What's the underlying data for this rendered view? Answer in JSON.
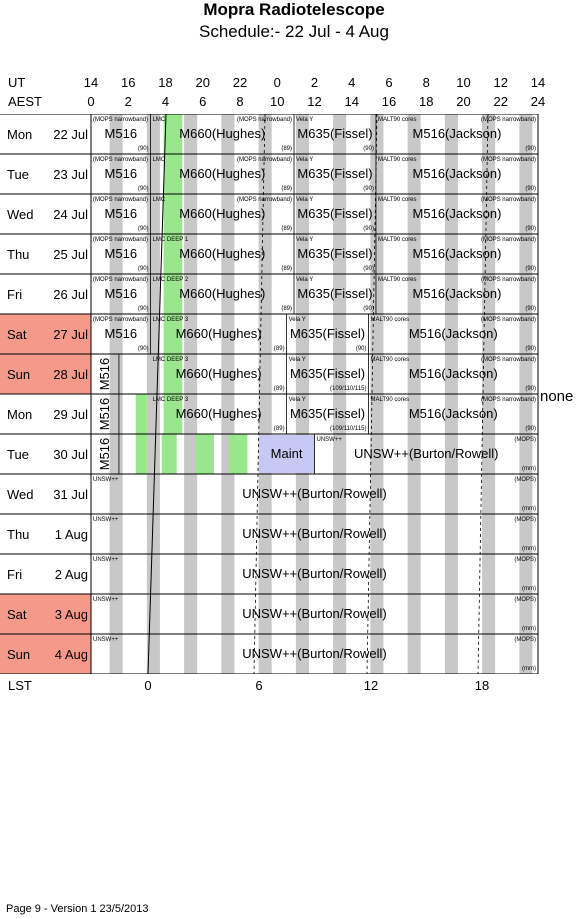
{
  "title": "Mopra Radiotelescope",
  "subtitle": "Schedule:- 22 Jul - 4  Aug",
  "ut_label": "UT",
  "aest_label": "AEST",
  "lst_label": "LST",
  "ut_ticks": [
    "14",
    "16",
    "18",
    "20",
    "22",
    "0",
    "2",
    "4",
    "6",
    "8",
    "10",
    "12",
    "14"
  ],
  "aest_ticks": [
    "0",
    "2",
    "4",
    "6",
    "8",
    "10",
    "12",
    "14",
    "16",
    "18",
    "20",
    "22",
    "24"
  ],
  "lst_ticks": [
    "0",
    "6",
    "12",
    "18"
  ],
  "side_note": "none",
  "footer": "Page 9 - Version 1  23/5/2013",
  "colors": {
    "weekend": "#f59a8a",
    "green": "#99e68c",
    "maint": "#c8c8f5",
    "stripe": "#c8c8c8"
  },
  "days": [
    {
      "day": "Mon",
      "date": "22 Jul",
      "weekend": false
    },
    {
      "day": "Tue",
      "date": "23 Jul",
      "weekend": false
    },
    {
      "day": "Wed",
      "date": "24 Jul",
      "weekend": false
    },
    {
      "day": "Thu",
      "date": "25 Jul",
      "weekend": false
    },
    {
      "day": "Fri",
      "date": "26 Jul",
      "weekend": false
    },
    {
      "day": "Sat",
      "date": "27 Jul",
      "weekend": true
    },
    {
      "day": "Sun",
      "date": "28 Jul",
      "weekend": true
    },
    {
      "day": "Mon",
      "date": "29 Jul",
      "weekend": false
    },
    {
      "day": "Tue",
      "date": "30 Jul",
      "weekend": false
    },
    {
      "day": "Wed",
      "date": "31 Jul",
      "weekend": false
    },
    {
      "day": "Thu",
      "date": "1  Aug",
      "weekend": false
    },
    {
      "day": "Fri",
      "date": "2  Aug",
      "weekend": false
    },
    {
      "day": "Sat",
      "date": "3  Aug",
      "weekend": true
    },
    {
      "day": "Sun",
      "date": "4  Aug",
      "weekend": true
    }
  ],
  "blocks": [
    [
      {
        "main": "M516",
        "top": "(MOPS narrowband)",
        "bottom": "(90)",
        "start": 14,
        "end": 17.2
      },
      {
        "main": "M660(Hughes)",
        "top": "LMC",
        "top2": "(MOPS narrowband)",
        "bottom": "(89)",
        "start": 17.2,
        "end": 24.9
      },
      {
        "main": "M635(Fissel)",
        "top": "Vela Y",
        "bottom": "(90)",
        "start": 24.9,
        "end": 29.3
      },
      {
        "main": "M516(Jackson)",
        "top": "MALT90 cores",
        "top2": "(MOPS narrowband)",
        "bottom": "(90)",
        "start": 29.3,
        "end": 38
      }
    ],
    [
      {
        "main": "M516",
        "top": "(MOPS narrowband)",
        "bottom": "(90)",
        "start": 14,
        "end": 17.2
      },
      {
        "main": "M660(Hughes)",
        "top": "LMC",
        "top2": "(MOPS narrowband)",
        "bottom": "(89)",
        "start": 17.2,
        "end": 24.9
      },
      {
        "main": "M635(Fissel)",
        "top": "Vela Y",
        "bottom": "(90)",
        "start": 24.9,
        "end": 29.3
      },
      {
        "main": "M516(Jackson)",
        "top": "MALT90 cores",
        "top2": "(MOPS narrowband)",
        "bottom": "(90)",
        "start": 29.3,
        "end": 38
      }
    ],
    [
      {
        "main": "M516",
        "top": "(MOPS narrowband)",
        "bottom": "(90)",
        "start": 14,
        "end": 17.2
      },
      {
        "main": "M660(Hughes)",
        "top": "LMC",
        "top2": "(MOPS narrowband)",
        "bottom": "(89)",
        "start": 17.2,
        "end": 24.9
      },
      {
        "main": "M635(Fissel)",
        "top": "Vela Y",
        "bottom": "(90)",
        "start": 24.9,
        "end": 29.3
      },
      {
        "main": "M516(Jackson)",
        "top": "MALT90 cores",
        "top2": "(MOPS narrowband)",
        "bottom": "(90)",
        "start": 29.3,
        "end": 38
      }
    ],
    [
      {
        "main": "M516",
        "top": "(MOPS narrowband)",
        "bottom": "(90)",
        "start": 14,
        "end": 17.2
      },
      {
        "main": "M660(Hughes)",
        "top": "LMC DEEP 1",
        "bottom": "(89)",
        "start": 17.2,
        "end": 24.9
      },
      {
        "main": "M635(Fissel)",
        "top": "Vela Y",
        "bottom": "(90)",
        "start": 24.9,
        "end": 29.3
      },
      {
        "main": "M516(Jackson)",
        "top": "MALT90 cores",
        "top2": "(MOPS narrowband)",
        "bottom": "(90)",
        "start": 29.3,
        "end": 38
      }
    ],
    [
      {
        "main": "M516",
        "top": "(MOPS narrowband)",
        "bottom": "(90)",
        "start": 14,
        "end": 17.2
      },
      {
        "main": "M660(Hughes)",
        "top": "LMC DEEP 2",
        "bottom": "(89)",
        "start": 17.2,
        "end": 24.9
      },
      {
        "main": "M635(Fissel)",
        "top": "Vela Y",
        "bottom": "(90)",
        "start": 24.9,
        "end": 29.3
      },
      {
        "main": "M516(Jackson)",
        "top": "MALT90 cores",
        "top2": "(MOPS narrowband)",
        "bottom": "(90)",
        "start": 29.3,
        "end": 38
      }
    ],
    [
      {
        "main": "M516",
        "top": "(MOPS narrowband)",
        "bottom": "(90)",
        "start": 14,
        "end": 17.2
      },
      {
        "main": "M660(Hughes)",
        "top": "LMC DEEP 3",
        "bottom": "(89)",
        "start": 17.2,
        "end": 24.5
      },
      {
        "main": "M635(Fissel)",
        "top": "Vela Y",
        "bottom": "(90)",
        "start": 24.5,
        "end": 28.9
      },
      {
        "main": "M516(Jackson)",
        "top": "MALT90 cores",
        "top2": "(MOPS narrowband)",
        "bottom": "(90)",
        "start": 28.9,
        "end": 38
      }
    ],
    [
      {
        "main": "M516",
        "vertical": true,
        "start": 14,
        "end": 15.5
      },
      {
        "main": "M660(Hughes)",
        "top": "LMC DEEP 3",
        "bottom": "(89)",
        "start": 17.2,
        "end": 24.5
      },
      {
        "main": "M635(Fissel)",
        "top": "Vela Y",
        "bottom": "(109/110/115)",
        "start": 24.5,
        "end": 28.9
      },
      {
        "main": "M516(Jackson)",
        "top": "MALT90 cores",
        "top2": "(MOPS narrowband)",
        "bottom": "(90)",
        "start": 28.9,
        "end": 38
      }
    ],
    [
      {
        "main": "M516",
        "vertical": true,
        "start": 14,
        "end": 15.5
      },
      {
        "main": "M660(Hughes)",
        "top": "LMC DEEP 3",
        "bottom": "(89)",
        "start": 17.2,
        "end": 24.5
      },
      {
        "main": "M635(Fissel)",
        "top": "Vela Y",
        "bottom": "(109/110/115)",
        "start": 24.5,
        "end": 28.9
      },
      {
        "main": "M516(Jackson)",
        "top": "MALT90 cores",
        "top2": "(MOPS narrowband)",
        "bottom": "(90)",
        "start": 28.9,
        "end": 38
      }
    ],
    [
      {
        "main": "M516",
        "vertical": true,
        "start": 14,
        "end": 15.5
      },
      {
        "main": "Maint",
        "start": 23,
        "end": 26,
        "maint": true
      },
      {
        "main": "UNSW++(Burton/Rowell)",
        "top": "UNSW++",
        "top2": "(MOPS)",
        "bottom": "(mm)",
        "start": 26,
        "end": 38
      }
    ],
    [
      {
        "main": "UNSW++(Burton/Rowell)",
        "top": "UNSW++",
        "top2": "(MOPS)",
        "bottom": "(mm)",
        "start": 14,
        "end": 38
      }
    ],
    [
      {
        "main": "UNSW++(Burton/Rowell)",
        "top": "UNSW++",
        "top2": "(MOPS)",
        "bottom": "(mm)",
        "start": 14,
        "end": 38
      }
    ],
    [
      {
        "main": "UNSW++(Burton/Rowell)",
        "top": "UNSW++",
        "top2": "(MOPS)",
        "bottom": "(mm)",
        "start": 14,
        "end": 38
      }
    ],
    [
      {
        "main": "UNSW++(Burton/Rowell)",
        "top": "UNSW++",
        "top2": "(MOPS)",
        "bottom": "(mm)",
        "start": 14,
        "end": 38
      }
    ],
    [
      {
        "main": "UNSW++(Burton/Rowell)",
        "top": "UNSW++",
        "top2": "(MOPS)",
        "bottom": "(mm)",
        "start": 14,
        "end": 38
      }
    ]
  ],
  "green_bars": [
    {
      "rows": [
        0,
        7
      ],
      "start": 17.9,
      "end": 18.9
    },
    {
      "rows": [
        7,
        8
      ],
      "start": 16.4,
      "end": 17.0
    },
    {
      "rows": [
        8,
        8
      ],
      "start": 17.8,
      "end": 18.6
    },
    {
      "rows": [
        8,
        8
      ],
      "start": 19.6,
      "end": 20.6
    },
    {
      "rows": [
        8,
        8
      ],
      "start": 21.4,
      "end": 22.4
    }
  ]
}
